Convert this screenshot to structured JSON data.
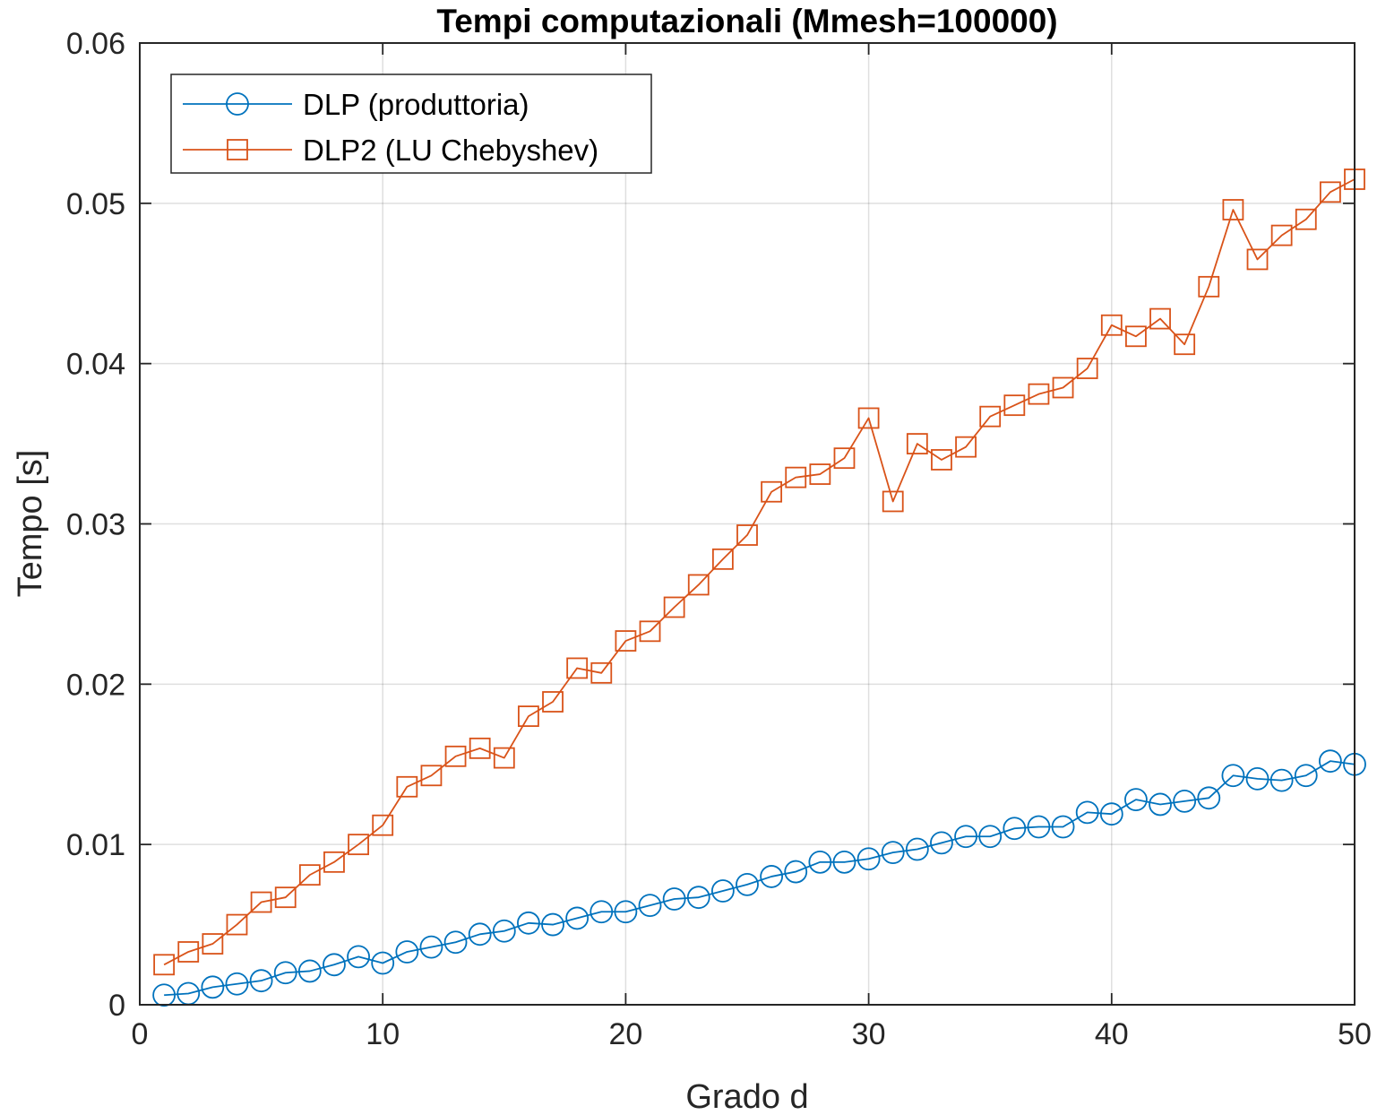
{
  "chart_data": {
    "type": "line",
    "title": "Tempi computazionali (Mmesh=100000)",
    "xlabel": "Grado d",
    "ylabel": "Tempo [s]",
    "xlim": [
      0,
      50
    ],
    "ylim": [
      0,
      0.06
    ],
    "xticks": [
      0,
      10,
      20,
      30,
      40,
      50
    ],
    "xtick_labels": [
      "0",
      "10",
      "20",
      "30",
      "40",
      "50"
    ],
    "yticks": [
      0,
      0.01,
      0.02,
      0.03,
      0.04,
      0.05,
      0.06
    ],
    "ytick_labels": [
      "0",
      "0.01",
      "0.02",
      "0.03",
      "0.04",
      "0.05",
      "0.06"
    ],
    "grid": true,
    "legend_position": "top-left",
    "x": [
      1,
      2,
      3,
      4,
      5,
      6,
      7,
      8,
      9,
      10,
      11,
      12,
      13,
      14,
      15,
      16,
      17,
      18,
      19,
      20,
      21,
      22,
      23,
      24,
      25,
      26,
      27,
      28,
      29,
      30,
      31,
      32,
      33,
      34,
      35,
      36,
      37,
      38,
      39,
      40,
      41,
      42,
      43,
      44,
      45,
      46,
      47,
      48,
      49,
      50
    ],
    "series": [
      {
        "name": "DLP (produttoria)",
        "color": "#0072BD",
        "marker": "circle",
        "values": [
          0.0006,
          0.0007,
          0.0011,
          0.0013,
          0.0015,
          0.002,
          0.0021,
          0.0025,
          0.003,
          0.0026,
          0.0033,
          0.0036,
          0.0039,
          0.0044,
          0.0046,
          0.0051,
          0.005,
          0.0054,
          0.0058,
          0.0058,
          0.0062,
          0.0066,
          0.0067,
          0.0071,
          0.0075,
          0.008,
          0.0083,
          0.0089,
          0.0089,
          0.0091,
          0.0095,
          0.0097,
          0.0101,
          0.0105,
          0.0105,
          0.011,
          0.0111,
          0.0111,
          0.012,
          0.0119,
          0.0128,
          0.0125,
          0.0127,
          0.0129,
          0.0143,
          0.0141,
          0.014,
          0.0143,
          0.0152,
          0.015
        ]
      },
      {
        "name": "DLP2 (LU Chebyshev)",
        "color": "#D95319",
        "marker": "square",
        "values": [
          0.0025,
          0.0033,
          0.0038,
          0.005,
          0.0064,
          0.0067,
          0.0081,
          0.0089,
          0.01,
          0.0112,
          0.0136,
          0.0143,
          0.0155,
          0.016,
          0.0154,
          0.018,
          0.0189,
          0.021,
          0.0207,
          0.0227,
          0.0233,
          0.0248,
          0.0262,
          0.0278,
          0.0293,
          0.032,
          0.0329,
          0.0331,
          0.0341,
          0.0366,
          0.0314,
          0.035,
          0.034,
          0.0348,
          0.0367,
          0.0374,
          0.0381,
          0.0385,
          0.0397,
          0.0424,
          0.0417,
          0.0428,
          0.0412,
          0.0448,
          0.0496,
          0.0465,
          0.048,
          0.049,
          0.0507,
          0.0515
        ]
      }
    ]
  }
}
